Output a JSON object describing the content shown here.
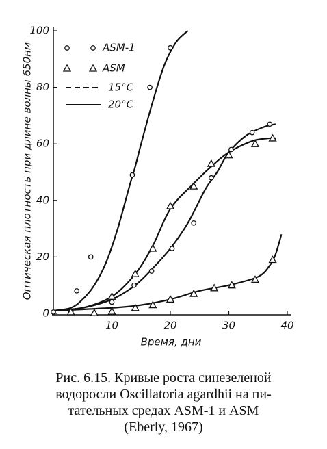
{
  "chart_data": {
    "type": "scatter",
    "y_label": "Оптическая плотность при длине волны 650нм",
    "x_label": "Время, дни",
    "xlim": [
      0,
      40
    ],
    "ylim": [
      0,
      100
    ],
    "xticks": [
      10,
      20,
      30,
      40
    ],
    "yticks": [
      0,
      20,
      40,
      60,
      80,
      100
    ],
    "series": [
      {
        "name": "ASM-1",
        "marker": "circle",
        "color": "#111",
        "x": [
          0,
          3,
          4,
          6.4,
          10,
          13.5,
          13.8,
          16.5,
          16.8,
          20,
          20.3,
          24,
          27,
          30.4,
          34,
          37
        ],
        "values": [
          0.5,
          0.7,
          8,
          20,
          4,
          49,
          10,
          80,
          15,
          94,
          23,
          32,
          48,
          58,
          64,
          67
        ]
      },
      {
        "name": "ASM",
        "marker": "triangle",
        "color": "#111",
        "x": [
          3,
          7,
          10,
          10,
          14,
          14,
          17,
          17,
          20,
          20,
          24,
          24,
          27.5,
          27,
          30.5,
          30,
          34.5,
          34.5,
          37.5,
          37.5
        ],
        "values": [
          0.5,
          0.2,
          0.7,
          6,
          2,
          14,
          3,
          23,
          5,
          38,
          7,
          45,
          9,
          53,
          10,
          56,
          12,
          60,
          19,
          62
        ]
      }
    ],
    "line_styles": [
      {
        "name": "15°C",
        "dashed": true,
        "curves": []
      },
      {
        "name": "20°C",
        "dashed": false,
        "curves": [
          {
            "x": [
              0,
              3,
              5,
              7,
              9,
              11,
              13,
              14,
              15,
              17,
              19,
              21,
              23
            ],
            "values": [
              1,
              2,
              5,
              10,
              18,
              30,
              45,
              52,
              60,
              75,
              88,
              96,
              100
            ]
          },
          {
            "x": [
              0,
              5,
              10,
              14,
              17,
              20,
              23,
              26,
              28,
              30,
              33,
              36,
              38
            ],
            "values": [
              1,
              2,
              5,
              10,
              16,
              23,
              32,
              44,
              50,
              57,
              63,
              66,
              67
            ]
          },
          {
            "x": [
              0,
              5,
              10,
              14,
              17,
              20,
              24,
              27,
              30,
              34,
              37,
              38
            ],
            "values": [
              1,
              2,
              6,
              14,
              24,
              37,
              46,
              52,
              57,
              61,
              62,
              62
            ]
          },
          {
            "x": [
              0,
              10,
              15,
              20,
              25,
              30,
              35,
              37,
              38,
              39
            ],
            "values": [
              1,
              2,
              3,
              5,
              8,
              10,
              13,
              17,
              21,
              28
            ]
          }
        ]
      }
    ]
  },
  "caption": [
    "Рис. 6.15. Кривые роста синезеленой",
    "водоросли Oscillatoria agardhii на пи-",
    "тательных средах ASM-1 и ASM",
    "(Eberly, 1967)"
  ]
}
